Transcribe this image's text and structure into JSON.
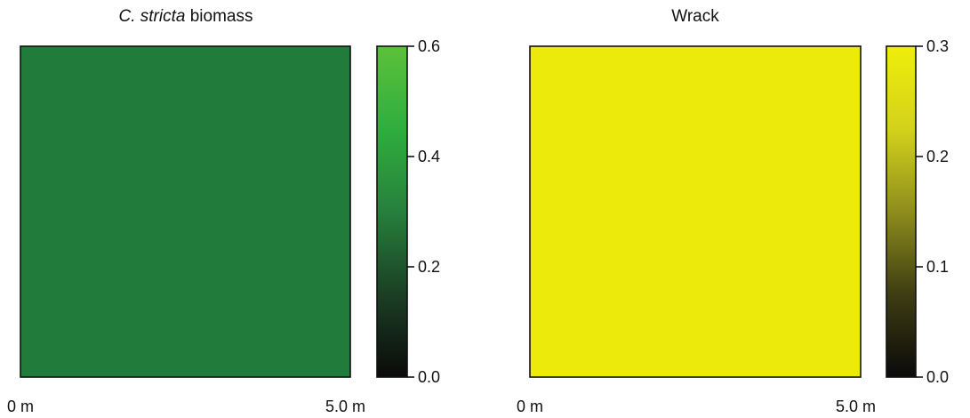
{
  "chart_data": [
    {
      "type": "heatmap",
      "title_italic": "C. stricta",
      "title_rest": " biomass",
      "x_labels": [
        "0 m",
        "5.0 m"
      ],
      "value": 0.31,
      "fill_color": "#217b3b",
      "colorbar": {
        "range": [
          0,
          0.6
        ],
        "ticks": [
          0.0,
          0.2,
          0.4,
          0.6
        ],
        "tick_labels": [
          "0.0",
          "0.2",
          "0.4",
          "0.6"
        ],
        "colors": [
          "#0a0a0a",
          "#1b3f24",
          "#26803c",
          "#2fae3e",
          "#5cc13a"
        ]
      }
    },
    {
      "type": "heatmap",
      "title": "Wrack",
      "x_labels": [
        "0 m",
        "5.0 m"
      ],
      "value": 0.3,
      "fill_color": "#ebea0b",
      "colorbar": {
        "range": [
          0,
          0.3
        ],
        "ticks": [
          0.0,
          0.1,
          0.2,
          0.3
        ],
        "tick_labels": [
          "0.0",
          "0.1",
          "0.2",
          "0.3"
        ],
        "colors": [
          "#0a0a0a",
          "#3e3d12",
          "#8e8d1d",
          "#d3d21b",
          "#efee0a"
        ]
      }
    }
  ]
}
